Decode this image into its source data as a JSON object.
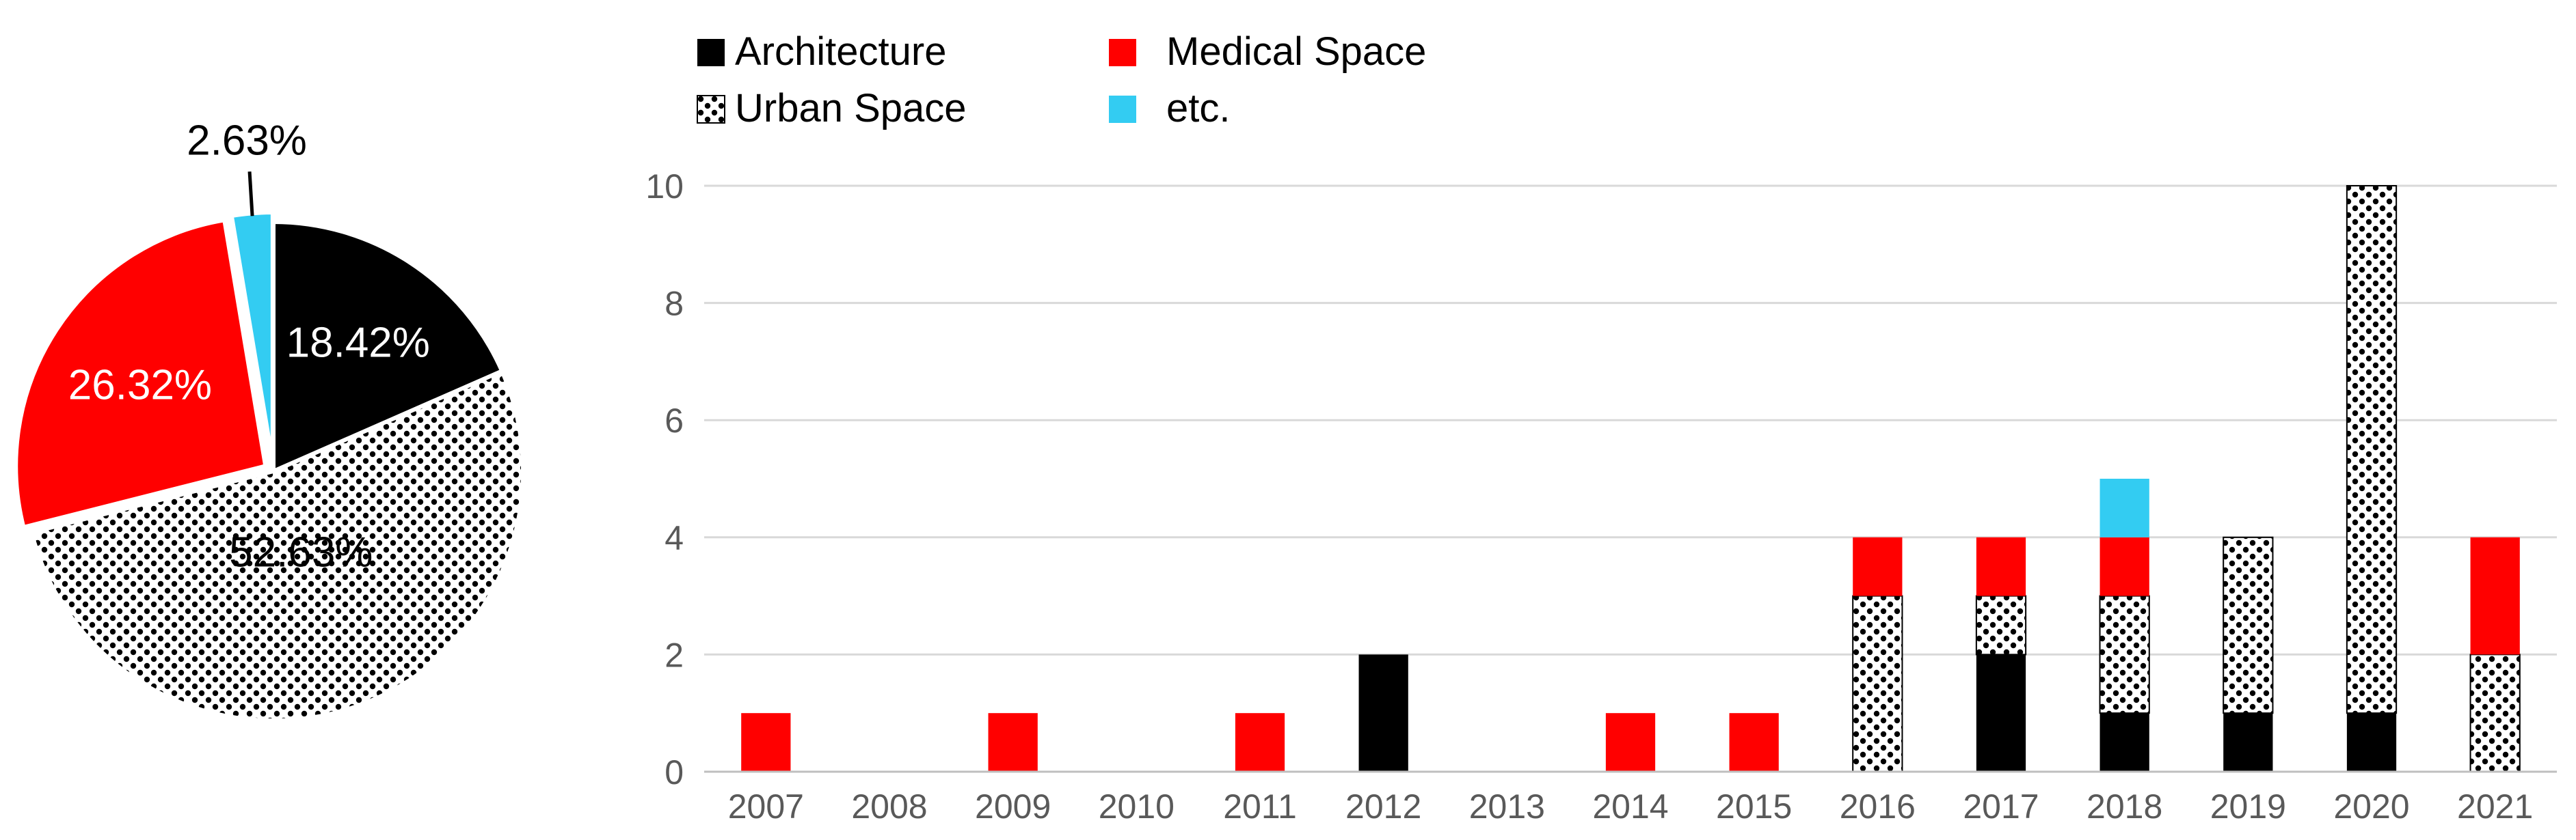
{
  "colors": {
    "architecture": "#000000",
    "medical": "#ff0000",
    "urban_base": "#ffffff",
    "urban_dot": "#000000",
    "etc": "#33ccf2",
    "grid": "#d9d9d9",
    "axis": "#bfbfbf",
    "text": "#595959"
  },
  "chart_data": [
    {
      "type": "pie",
      "title": "",
      "slices": [
        {
          "key": "architecture",
          "label": "18.42%",
          "value": 18.42
        },
        {
          "key": "urban",
          "label": "52.63%",
          "value": 52.63
        },
        {
          "key": "medical",
          "label": "26.32%",
          "value": 26.32
        },
        {
          "key": "etc",
          "label": "2.63%",
          "value": 2.63
        }
      ]
    },
    {
      "type": "bar",
      "stacked": true,
      "title": "",
      "xlabel": "",
      "ylabel": "",
      "ylim": [
        0,
        10
      ],
      "yticks": [
        "0",
        "2",
        "4",
        "6",
        "8",
        "10"
      ],
      "grid": true,
      "legend_position": "top-left",
      "categories": [
        "2007",
        "2008",
        "2009",
        "2010",
        "2011",
        "2012",
        "2013",
        "2014",
        "2015",
        "2016",
        "2017",
        "2018",
        "2019",
        "2020",
        "2021"
      ],
      "series": [
        {
          "key": "architecture",
          "name": "Architecture",
          "values": [
            0,
            0,
            0,
            0,
            0,
            2,
            0,
            0,
            0,
            0,
            2,
            1,
            1,
            1,
            0
          ]
        },
        {
          "key": "urban",
          "name": "Urban Space",
          "values": [
            0,
            0,
            0,
            0,
            0,
            0,
            0,
            0,
            0,
            3,
            1,
            2,
            3,
            9,
            2
          ]
        },
        {
          "key": "medical",
          "name": "Medical Space",
          "values": [
            1,
            0,
            1,
            0,
            1,
            0,
            0,
            1,
            1,
            1,
            1,
            1,
            0,
            0,
            2
          ]
        },
        {
          "key": "etc",
          "name": "etc.",
          "values": [
            0,
            0,
            0,
            0,
            0,
            0,
            0,
            0,
            0,
            0,
            0,
            1,
            0,
            0,
            0
          ]
        }
      ]
    }
  ]
}
